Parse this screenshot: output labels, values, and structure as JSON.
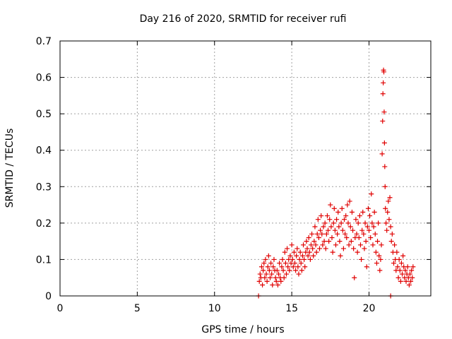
{
  "chart_data": {
    "type": "scatter",
    "title": "Day 216 of 2020, SRMTID for receiver rufi",
    "xlabel": "GPS time / hours",
    "ylabel": "SRMTID / TECUs",
    "xlim": [
      0,
      24
    ],
    "ylim": [
      0,
      0.7
    ],
    "xticks": [
      0,
      5,
      10,
      15,
      20
    ],
    "yticks": [
      0,
      0.1,
      0.2,
      0.3,
      0.4,
      0.5,
      0.6,
      0.7
    ],
    "xtick_labels": [
      "0",
      "5",
      "10",
      "15",
      "20"
    ],
    "ytick_labels": [
      "0",
      "0.1",
      "0.2",
      "0.3",
      "0.4",
      "0.5",
      "0.6",
      "0.7"
    ],
    "grid": true,
    "marker": "+",
    "color": "#e00000",
    "series": [
      {
        "name": "SRMTID",
        "points": [
          [
            12.85,
            0.0
          ],
          [
            12.9,
            0.04
          ],
          [
            12.95,
            0.06
          ],
          [
            13.0,
            0.05
          ],
          [
            13.05,
            0.08
          ],
          [
            13.1,
            0.03
          ],
          [
            13.15,
            0.07
          ],
          [
            13.2,
            0.09
          ],
          [
            13.25,
            0.05
          ],
          [
            13.3,
            0.1
          ],
          [
            13.35,
            0.06
          ],
          [
            13.4,
            0.04
          ],
          [
            13.45,
            0.08
          ],
          [
            13.5,
            0.11
          ],
          [
            13.55,
            0.07
          ],
          [
            13.6,
            0.05
          ],
          [
            13.65,
            0.09
          ],
          [
            13.7,
            0.06
          ],
          [
            13.75,
            0.03
          ],
          [
            13.8,
            0.08
          ],
          [
            13.85,
            0.1
          ],
          [
            13.9,
            0.07
          ],
          [
            13.95,
            0.05
          ],
          [
            14.0,
            0.04
          ],
          [
            14.05,
            0.07
          ],
          [
            14.1,
            0.03
          ],
          [
            14.15,
            0.06
          ],
          [
            14.2,
            0.09
          ],
          [
            14.25,
            0.05
          ],
          [
            14.3,
            0.04
          ],
          [
            14.35,
            0.08
          ],
          [
            14.4,
            0.1
          ],
          [
            14.45,
            0.07
          ],
          [
            14.5,
            0.05
          ],
          [
            14.55,
            0.12
          ],
          [
            14.6,
            0.09
          ],
          [
            14.65,
            0.06
          ],
          [
            14.7,
            0.13
          ],
          [
            14.75,
            0.08
          ],
          [
            14.8,
            0.1
          ],
          [
            14.85,
            0.07
          ],
          [
            14.9,
            0.11
          ],
          [
            14.95,
            0.09
          ],
          [
            15.0,
            0.14
          ],
          [
            15.05,
            0.1
          ],
          [
            15.1,
            0.08
          ],
          [
            15.15,
            0.12
          ],
          [
            15.2,
            0.09
          ],
          [
            15.25,
            0.07
          ],
          [
            15.3,
            0.11
          ],
          [
            15.35,
            0.13
          ],
          [
            15.4,
            0.08
          ],
          [
            15.45,
            0.06
          ],
          [
            15.5,
            0.1
          ],
          [
            15.55,
            0.12
          ],
          [
            15.6,
            0.09
          ],
          [
            15.65,
            0.07
          ],
          [
            15.7,
            0.11
          ],
          [
            15.75,
            0.14
          ],
          [
            15.8,
            0.1
          ],
          [
            15.85,
            0.08
          ],
          [
            15.9,
            0.12
          ],
          [
            15.95,
            0.15
          ],
          [
            16.0,
            0.13
          ],
          [
            16.05,
            0.11
          ],
          [
            16.1,
            0.16
          ],
          [
            16.15,
            0.12
          ],
          [
            16.2,
            0.1
          ],
          [
            16.25,
            0.14
          ],
          [
            16.3,
            0.17
          ],
          [
            16.35,
            0.13
          ],
          [
            16.4,
            0.11
          ],
          [
            16.45,
            0.15
          ],
          [
            16.5,
            0.19
          ],
          [
            16.55,
            0.14
          ],
          [
            16.6,
            0.12
          ],
          [
            16.65,
            0.17
          ],
          [
            16.7,
            0.21
          ],
          [
            16.75,
            0.16
          ],
          [
            16.8,
            0.13
          ],
          [
            16.85,
            0.18
          ],
          [
            16.9,
            0.22
          ],
          [
            16.95,
            0.17
          ],
          [
            17.0,
            0.14
          ],
          [
            17.05,
            0.19
          ],
          [
            17.1,
            0.15
          ],
          [
            17.15,
            0.2
          ],
          [
            17.2,
            0.13
          ],
          [
            17.25,
            0.17
          ],
          [
            17.3,
            0.22
          ],
          [
            17.35,
            0.18
          ],
          [
            17.4,
            0.15
          ],
          [
            17.45,
            0.21
          ],
          [
            17.5,
            0.25
          ],
          [
            17.55,
            0.19
          ],
          [
            17.6,
            0.16
          ],
          [
            17.65,
            0.12
          ],
          [
            17.7,
            0.2
          ],
          [
            17.75,
            0.24
          ],
          [
            17.8,
            0.18
          ],
          [
            17.85,
            0.14
          ],
          [
            17.9,
            0.21
          ],
          [
            17.95,
            0.17
          ],
          [
            18.0,
            0.23
          ],
          [
            18.05,
            0.19
          ],
          [
            18.1,
            0.15
          ],
          [
            18.15,
            0.11
          ],
          [
            18.2,
            0.2
          ],
          [
            18.25,
            0.24
          ],
          [
            18.3,
            0.18
          ],
          [
            18.35,
            0.13
          ],
          [
            18.4,
            0.21
          ],
          [
            18.45,
            0.17
          ],
          [
            18.5,
            0.22
          ],
          [
            18.55,
            0.16
          ],
          [
            18.6,
            0.25
          ],
          [
            18.65,
            0.2
          ],
          [
            18.7,
            0.14
          ],
          [
            18.75,
            0.26
          ],
          [
            18.8,
            0.19
          ],
          [
            18.85,
            0.15
          ],
          [
            18.9,
            0.23
          ],
          [
            18.95,
            0.18
          ],
          [
            19.0,
            0.13
          ],
          [
            19.05,
            0.05
          ],
          [
            19.1,
            0.16
          ],
          [
            19.15,
            0.21
          ],
          [
            19.2,
            0.17
          ],
          [
            19.25,
            0.12
          ],
          [
            19.3,
            0.2
          ],
          [
            19.35,
            0.16
          ],
          [
            19.4,
            0.22
          ],
          [
            19.45,
            0.14
          ],
          [
            19.5,
            0.1
          ],
          [
            19.55,
            0.18
          ],
          [
            19.6,
            0.23
          ],
          [
            19.65,
            0.17
          ],
          [
            19.7,
            0.13
          ],
          [
            19.75,
            0.2
          ],
          [
            19.8,
            0.15
          ],
          [
            19.85,
            0.08
          ],
          [
            19.9,
            0.19
          ],
          [
            19.95,
            0.24
          ],
          [
            20.0,
            0.18
          ],
          [
            20.05,
            0.22
          ],
          [
            20.1,
            0.16
          ],
          [
            20.15,
            0.28
          ],
          [
            20.2,
            0.2
          ],
          [
            20.25,
            0.14
          ],
          [
            20.3,
            0.19
          ],
          [
            20.35,
            0.23
          ],
          [
            20.4,
            0.17
          ],
          [
            20.45,
            0.12
          ],
          [
            20.5,
            0.09
          ],
          [
            20.55,
            0.15
          ],
          [
            20.6,
            0.2
          ],
          [
            20.65,
            0.11
          ],
          [
            20.7,
            0.07
          ],
          [
            20.75,
            0.1
          ],
          [
            20.8,
            0.14
          ],
          [
            20.85,
            0.39
          ],
          [
            20.88,
            0.48
          ],
          [
            20.9,
            0.555
          ],
          [
            20.92,
            0.585
          ],
          [
            20.94,
            0.62
          ],
          [
            20.96,
            0.615
          ],
          [
            20.98,
            0.505
          ],
          [
            21.0,
            0.42
          ],
          [
            21.02,
            0.355
          ],
          [
            21.04,
            0.3
          ],
          [
            21.06,
            0.24
          ],
          [
            21.1,
            0.2
          ],
          [
            21.15,
            0.18
          ],
          [
            21.2,
            0.23
          ],
          [
            21.25,
            0.26
          ],
          [
            21.3,
            0.21
          ],
          [
            21.35,
            0.27
          ],
          [
            21.4,
            0.19
          ],
          [
            21.45,
            0.15
          ],
          [
            21.5,
            0.17
          ],
          [
            21.55,
            0.12
          ],
          [
            21.6,
            0.09
          ],
          [
            21.65,
            0.14
          ],
          [
            21.7,
            0.1
          ],
          [
            21.75,
            0.07
          ],
          [
            21.8,
            0.12
          ],
          [
            21.85,
            0.08
          ],
          [
            21.9,
            0.05
          ],
          [
            21.95,
            0.1
          ],
          [
            22.0,
            0.07
          ],
          [
            22.05,
            0.04
          ],
          [
            22.1,
            0.09
          ],
          [
            22.15,
            0.06
          ],
          [
            22.2,
            0.11
          ],
          [
            22.25,
            0.08
          ],
          [
            22.3,
            0.05
          ],
          [
            22.35,
            0.07
          ],
          [
            22.4,
            0.04
          ],
          [
            22.45,
            0.06
          ],
          [
            22.5,
            0.08
          ],
          [
            22.55,
            0.05
          ],
          [
            22.6,
            0.03
          ],
          [
            22.65,
            0.06
          ],
          [
            22.7,
            0.04
          ],
          [
            22.75,
            0.07
          ],
          [
            22.8,
            0.05
          ],
          [
            22.85,
            0.08
          ],
          [
            21.4,
            0.0
          ]
        ]
      }
    ]
  }
}
